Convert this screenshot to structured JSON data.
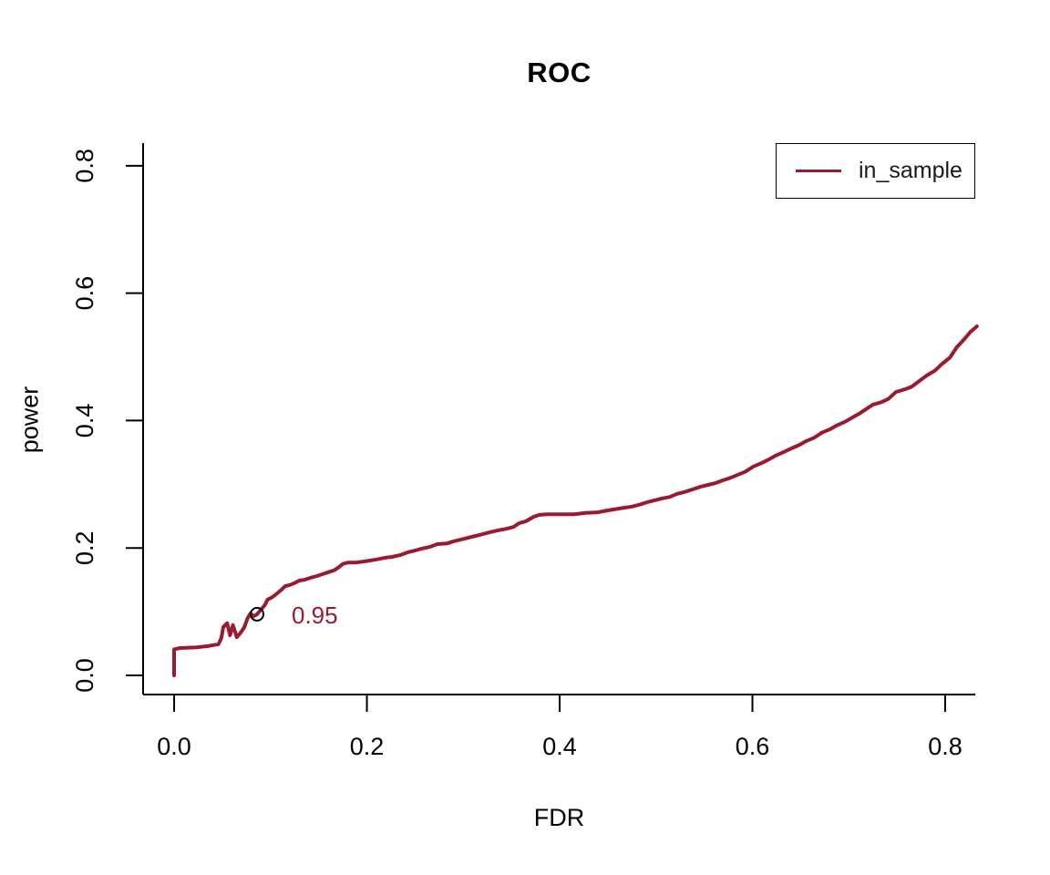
{
  "figure": {
    "title": "ROC",
    "x_axis_label": "FDR",
    "y_axis_label": "power"
  },
  "legend": {
    "position": "top-right",
    "items": [
      {
        "label": "in_sample",
        "color": "#9a1b30",
        "line_style": "solid"
      }
    ]
  },
  "colors": {
    "curve": "#9a1b30",
    "axis": "#000000",
    "marker": "#000000",
    "annotation_text": "#9a1b30",
    "background": "#ffffff"
  },
  "chart_data": {
    "type": "line",
    "title": "ROC",
    "xlabel": "FDR",
    "ylabel": "power",
    "xlim": [
      -0.0322,
      0.8312
    ],
    "ylim": [
      -0.03,
      0.8355
    ],
    "x_ticks": [
      0.0,
      0.2,
      0.4,
      0.6,
      0.8
    ],
    "x_tick_labels": [
      "0.0",
      "0.2",
      "0.4",
      "0.6",
      "0.8"
    ],
    "y_ticks": [
      0.0,
      0.2,
      0.4,
      0.6,
      0.8
    ],
    "y_tick_labels": [
      "0.0",
      "0.2",
      "0.4",
      "0.6",
      "0.8"
    ],
    "grid": false,
    "legend_position": "top-right",
    "series": [
      {
        "name": "in_sample",
        "color": "#9a1b30",
        "x": [
          0.0,
          0.0,
          0.006,
          0.023,
          0.035,
          0.046,
          0.049,
          0.051,
          0.055,
          0.058,
          0.061,
          0.065,
          0.069,
          0.073,
          0.076,
          0.079,
          0.083,
          0.086,
          0.09,
          0.094,
          0.097,
          0.102,
          0.107,
          0.111,
          0.115,
          0.12,
          0.125,
          0.13,
          0.135,
          0.141,
          0.148,
          0.154,
          0.16,
          0.166,
          0.171,
          0.175,
          0.18,
          0.188,
          0.198,
          0.21,
          0.22,
          0.226,
          0.235,
          0.242,
          0.25,
          0.257,
          0.266,
          0.273,
          0.283,
          0.289,
          0.297,
          0.305,
          0.313,
          0.321,
          0.328,
          0.337,
          0.344,
          0.352,
          0.358,
          0.365,
          0.373,
          0.379,
          0.387,
          0.415,
          0.427,
          0.439,
          0.45,
          0.462,
          0.475,
          0.483,
          0.491,
          0.499,
          0.507,
          0.514,
          0.522,
          0.53,
          0.538,
          0.546,
          0.554,
          0.562,
          0.569,
          0.577,
          0.585,
          0.593,
          0.601,
          0.609,
          0.617,
          0.624,
          0.633,
          0.64,
          0.649,
          0.656,
          0.664,
          0.672,
          0.68,
          0.687,
          0.696,
          0.704,
          0.711,
          0.718,
          0.725,
          0.734,
          0.741,
          0.749,
          0.758,
          0.765,
          0.773,
          0.781,
          0.789,
          0.796,
          0.805,
          0.812,
          0.82,
          0.826,
          0.833
        ],
        "y": [
          0.0,
          0.041,
          0.043,
          0.044,
          0.046,
          0.049,
          0.059,
          0.076,
          0.082,
          0.063,
          0.079,
          0.06,
          0.067,
          0.076,
          0.089,
          0.097,
          0.093,
          0.096,
          0.103,
          0.11,
          0.119,
          0.123,
          0.129,
          0.134,
          0.14,
          0.142,
          0.145,
          0.149,
          0.15,
          0.153,
          0.156,
          0.159,
          0.162,
          0.165,
          0.17,
          0.175,
          0.177,
          0.177,
          0.179,
          0.182,
          0.185,
          0.186,
          0.189,
          0.193,
          0.196,
          0.199,
          0.202,
          0.206,
          0.207,
          0.21,
          0.213,
          0.216,
          0.219,
          0.222,
          0.225,
          0.228,
          0.23,
          0.233,
          0.239,
          0.242,
          0.249,
          0.252,
          0.253,
          0.253,
          0.255,
          0.256,
          0.259,
          0.262,
          0.265,
          0.268,
          0.272,
          0.275,
          0.278,
          0.28,
          0.285,
          0.288,
          0.292,
          0.296,
          0.299,
          0.302,
          0.306,
          0.31,
          0.315,
          0.32,
          0.328,
          0.333,
          0.339,
          0.345,
          0.351,
          0.356,
          0.362,
          0.368,
          0.373,
          0.381,
          0.386,
          0.392,
          0.398,
          0.405,
          0.411,
          0.418,
          0.425,
          0.429,
          0.434,
          0.445,
          0.449,
          0.453,
          0.462,
          0.471,
          0.478,
          0.488,
          0.499,
          0.515,
          0.528,
          0.539,
          0.548
        ]
      }
    ],
    "annotations": [
      {
        "type": "marked-point",
        "x": 0.086,
        "y": 0.096,
        "marker": "open-circle",
        "marker_color": "#000000",
        "label": "0.95",
        "label_color": "#9a1b30"
      }
    ]
  }
}
